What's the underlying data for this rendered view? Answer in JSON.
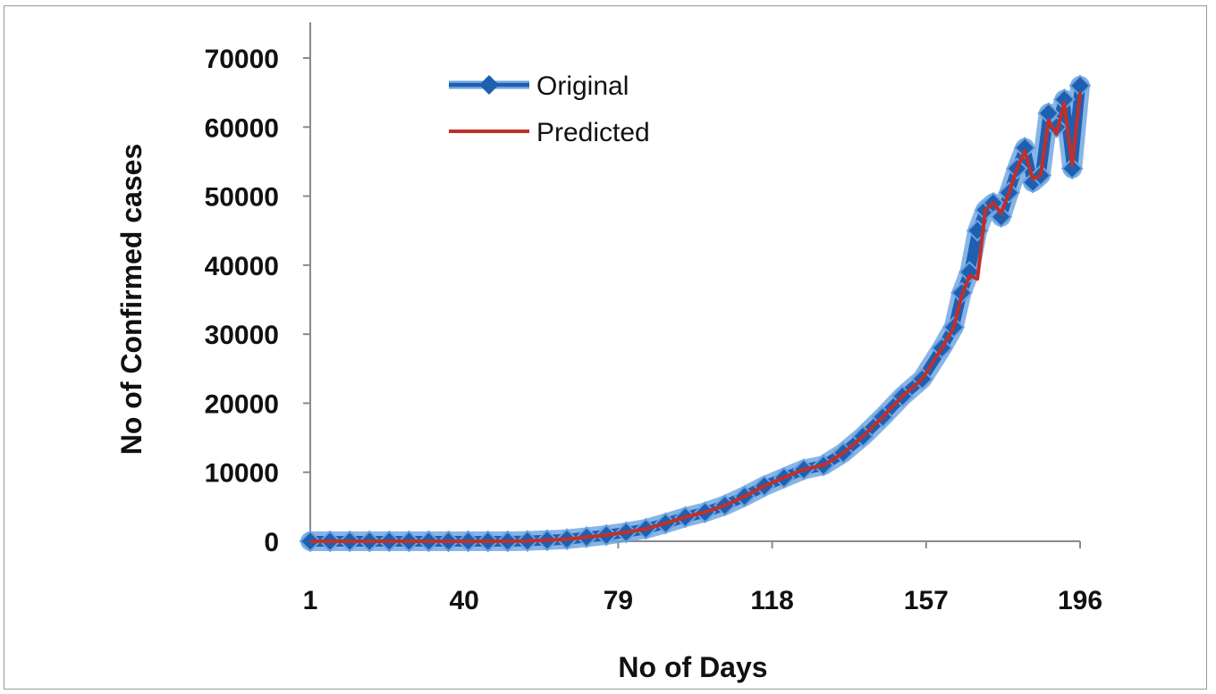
{
  "chart_data": {
    "type": "line",
    "title": "",
    "xlabel": "No of Days",
    "ylabel": "No of Confirmed cases",
    "x_ticks": [
      "1",
      "40",
      "79",
      "118",
      "157",
      "196"
    ],
    "y_ticks": [
      "0",
      "10000",
      "20000",
      "30000",
      "40000",
      "50000",
      "60000",
      "70000"
    ],
    "xlim": [
      1,
      196
    ],
    "ylim": [
      0,
      70000
    ],
    "grid": false,
    "legend_position": "top-left",
    "colors": {
      "original": "#1f5fb0",
      "original_glow": "#6aa2e0",
      "predicted": "#c0302a"
    },
    "x": [
      1,
      6,
      11,
      16,
      21,
      26,
      31,
      36,
      41,
      46,
      51,
      56,
      61,
      66,
      71,
      76,
      81,
      86,
      91,
      96,
      101,
      106,
      111,
      116,
      121,
      126,
      131,
      136,
      141,
      146,
      151,
      156,
      161,
      164,
      166,
      168,
      170,
      172,
      174,
      176,
      178,
      180,
      182,
      184,
      186,
      188,
      190,
      192,
      194,
      196
    ],
    "series": [
      {
        "name": "Original",
        "values": [
          0,
          0,
          0,
          0,
          0,
          0,
          0,
          0,
          0,
          0,
          0,
          50,
          150,
          300,
          600,
          900,
          1300,
          1800,
          2600,
          3500,
          4200,
          5200,
          6500,
          8000,
          9200,
          10400,
          11000,
          12800,
          15200,
          18000,
          21000,
          23500,
          28000,
          31000,
          36000,
          39000,
          45000,
          48000,
          49000,
          47000,
          50500,
          54000,
          57000,
          52000,
          53000,
          62000,
          60000,
          64000,
          54000,
          66000
        ]
      },
      {
        "name": "Predicted",
        "values": [
          0,
          0,
          0,
          0,
          0,
          0,
          0,
          0,
          0,
          0,
          0,
          50,
          150,
          300,
          600,
          900,
          1300,
          1800,
          2600,
          3500,
          4200,
          5200,
          6500,
          8000,
          9200,
          10400,
          11000,
          12800,
          15200,
          18000,
          21000,
          23500,
          28000,
          31000,
          35500,
          38500,
          38000,
          48000,
          49000,
          47500,
          50500,
          54000,
          56500,
          52500,
          53000,
          61000,
          59000,
          63500,
          54500,
          65000
        ]
      }
    ]
  }
}
